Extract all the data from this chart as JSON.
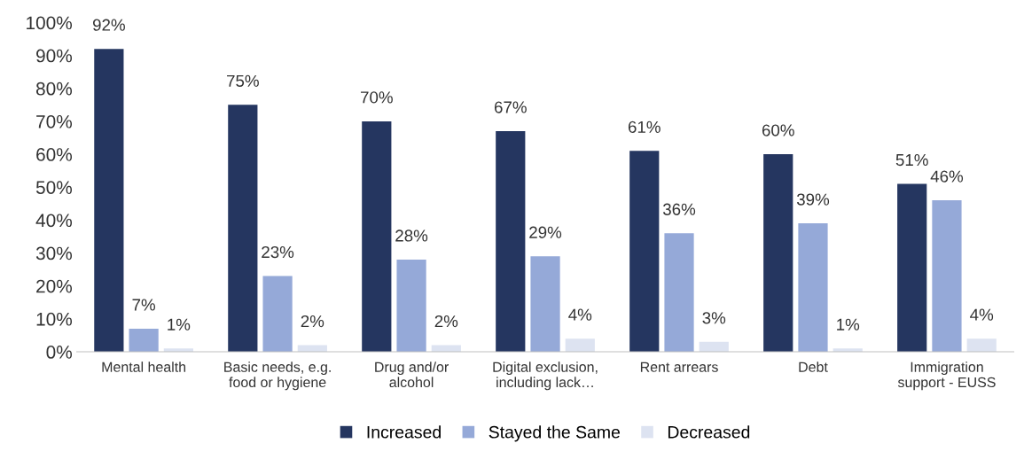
{
  "chart_data": {
    "type": "bar",
    "categories": [
      "Mental health",
      "Basic needs, e.g.\nfood or hygiene",
      "Drug and/or\nalcohol",
      "Digital exclusion,\nincluding lack…",
      "Rent arrears",
      "Debt",
      "Immigration\nsupport - EUSS"
    ],
    "series": [
      {
        "name": "Increased",
        "color": "#253660",
        "values": [
          92,
          75,
          70,
          67,
          61,
          60,
          51
        ],
        "value_labels": [
          "92%",
          "75%",
          "70%",
          "67%",
          "61%",
          "60%",
          "51%"
        ]
      },
      {
        "name": "Stayed the Same",
        "color": "#95a9d8",
        "values": [
          7,
          23,
          28,
          29,
          36,
          39,
          46
        ],
        "value_labels": [
          "7%",
          "23%",
          "28%",
          "29%",
          "36%",
          "39%",
          "46%"
        ]
      },
      {
        "name": "Decreased",
        "color": "#dde3f1",
        "values": [
          1,
          2,
          2,
          4,
          3,
          1,
          4
        ],
        "value_labels": [
          "1%",
          "2%",
          "2%",
          "4%",
          "3%",
          "1%",
          "4%"
        ]
      }
    ],
    "ylim": [
      0,
      100
    ],
    "yticks": [
      {
        "value": 0,
        "label": "0%"
      },
      {
        "value": 10,
        "label": "10%"
      },
      {
        "value": 20,
        "label": "20%"
      },
      {
        "value": 30,
        "label": "30%"
      },
      {
        "value": 40,
        "label": "40%"
      },
      {
        "value": 50,
        "label": "50%"
      },
      {
        "value": 60,
        "label": "60%"
      },
      {
        "value": 70,
        "label": "70%"
      },
      {
        "value": 80,
        "label": "80%"
      },
      {
        "value": 90,
        "label": "90%"
      },
      {
        "value": 100,
        "label": "100%"
      }
    ],
    "grid": false,
    "legend": "bottom"
  }
}
